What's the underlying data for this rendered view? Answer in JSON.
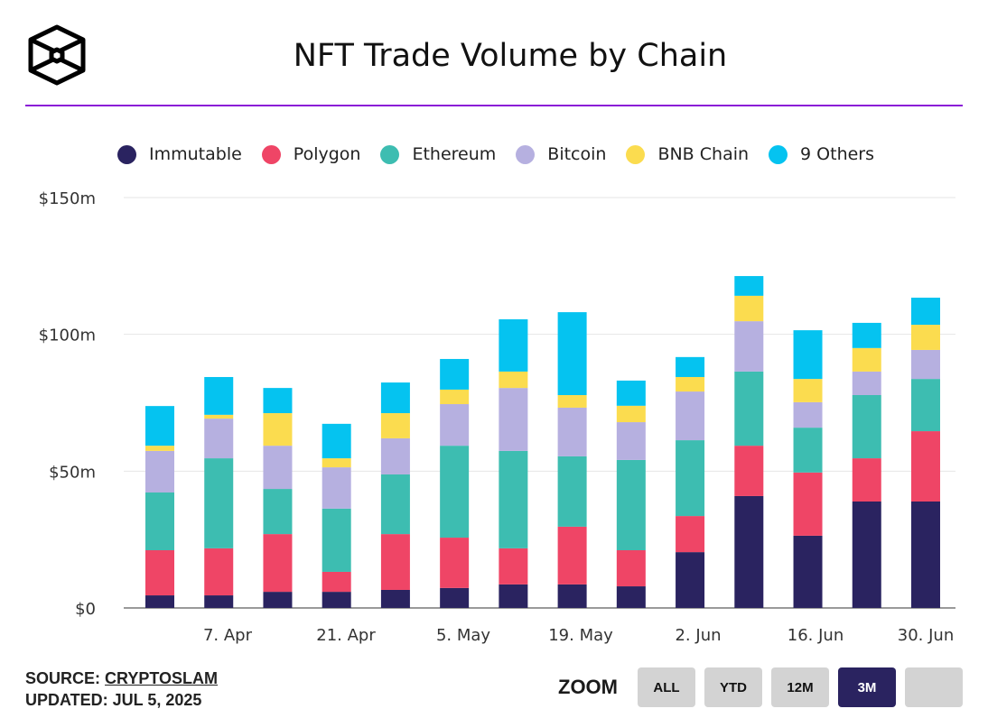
{
  "header": {
    "title": "NFT Trade Volume by Chain"
  },
  "chart_data": {
    "type": "bar",
    "stacked": true,
    "title": "NFT Trade Volume by Chain",
    "ylabel": "",
    "xlabel": "",
    "ylim": [
      0,
      150
    ],
    "yticks": [
      0,
      50,
      100,
      150
    ],
    "ytick_labels": [
      "$0",
      "$50m",
      "$100m",
      "$150m"
    ],
    "xtick_labels": [
      "7. Apr",
      "21. Apr",
      "5. May",
      "19. May",
      "2. Jun",
      "16. Jun",
      "30. Jun"
    ],
    "grid": true,
    "legend_position": "top",
    "series": [
      {
        "name": "Immutable",
        "color": "#2a2360",
        "values": [
          4.6,
          4.6,
          5.9,
          5.9,
          6.6,
          7.3,
          8.6,
          8.6,
          7.9,
          20.4,
          40.9,
          26.4,
          38.9,
          38.9
        ]
      },
      {
        "name": "Polygon",
        "color": "#ef4566",
        "values": [
          16.5,
          17.2,
          21.1,
          7.3,
          20.4,
          18.4,
          13.2,
          21.1,
          13.2,
          13.2,
          18.4,
          23.1,
          15.8,
          25.7
        ]
      },
      {
        "name": "Ethereum",
        "color": "#3dbdb1",
        "values": [
          21.1,
          32.9,
          16.5,
          23.1,
          21.8,
          33.6,
          35.6,
          25.7,
          33.0,
          27.7,
          27.1,
          16.4,
          23.1,
          19.1
        ]
      },
      {
        "name": "Bitcoin",
        "color": "#b6b0e0",
        "values": [
          15.2,
          14.5,
          15.8,
          15.1,
          13.2,
          15.2,
          23.0,
          17.8,
          13.8,
          17.8,
          18.4,
          9.3,
          8.6,
          10.6
        ]
      },
      {
        "name": "BNB Chain",
        "color": "#fbdc4f",
        "values": [
          1.9,
          1.4,
          11.9,
          3.3,
          9.2,
          5.3,
          6.0,
          4.6,
          6.0,
          5.3,
          9.3,
          8.5,
          8.6,
          9.2
        ]
      },
      {
        "name": "9 Others",
        "color": "#05c3f0",
        "values": [
          14.5,
          13.8,
          9.2,
          12.6,
          11.2,
          11.2,
          19.1,
          30.3,
          9.2,
          7.3,
          7.2,
          17.8,
          9.2,
          9.9
        ]
      }
    ]
  },
  "footer": {
    "source_label": "SOURCE:",
    "source_name": "CRYPTOSLAM",
    "updated": "UPDATED: JUL 5, 2025"
  },
  "zoom": {
    "label": "ZOOM",
    "buttons": [
      "ALL",
      "YTD",
      "12M",
      "3M",
      ""
    ],
    "active": "3M"
  }
}
